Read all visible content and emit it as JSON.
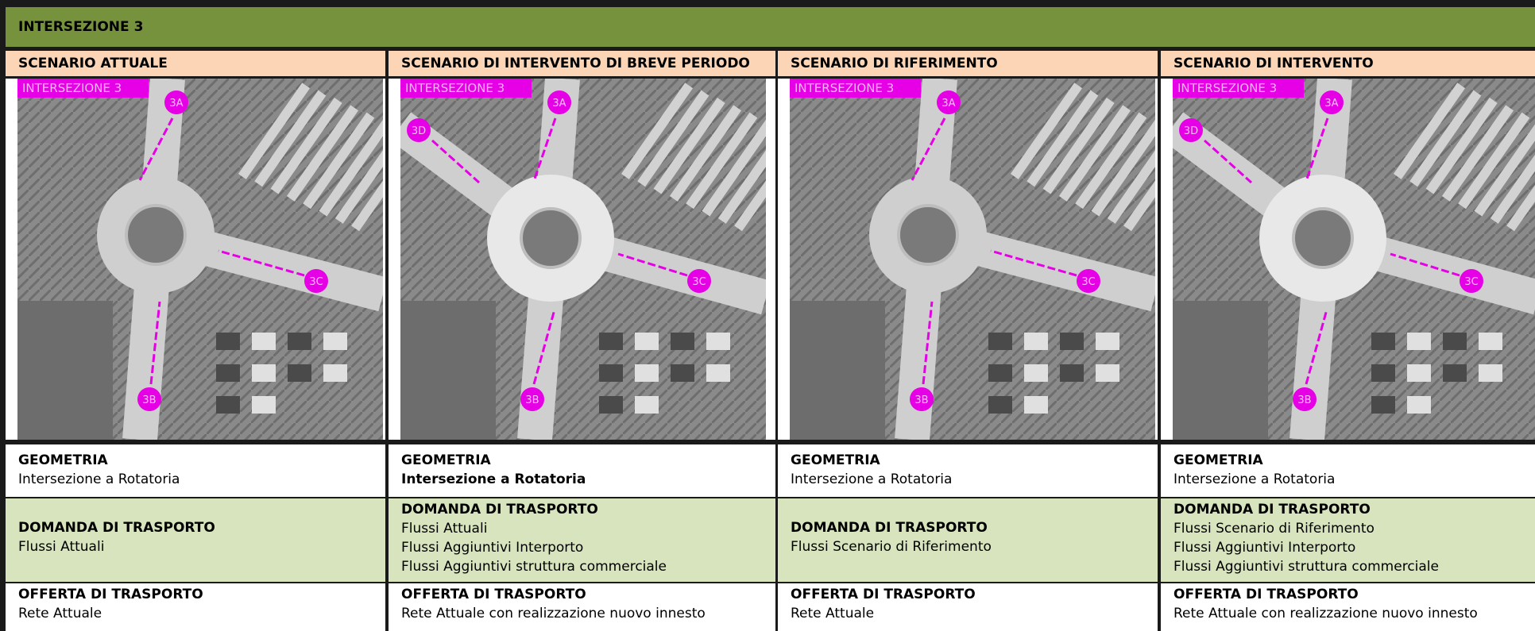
{
  "title": "INTERSEZIONE 3",
  "columns": [
    {
      "header": "SCENARIO ATTUALE",
      "map": {
        "badge": "INTERSEZIONE 3",
        "points": [
          "3A",
          "3B",
          "3C"
        ]
      },
      "geometry": {
        "label": "GEOMETRIA",
        "value": "Intersezione a Rotatoria"
      },
      "demand": {
        "label": "DOMANDA DI TRASPORTO",
        "lines": [
          "Flussi Attuali"
        ]
      },
      "supply": {
        "label": "OFFERTA DI TRASPORTO",
        "value": "Rete Attuale"
      }
    },
    {
      "header": "SCENARIO DI INTERVENTO DI BREVE PERIODO",
      "map": {
        "badge": "INTERSEZIONE 3",
        "points": [
          "3A",
          "3B",
          "3C",
          "3D"
        ]
      },
      "geometry": {
        "label": "GEOMETRIA",
        "value": "Intersezione a Rotatoria"
      },
      "demand": {
        "label": "DOMANDA DI TRASPORTO",
        "lines": [
          "Flussi Attuali",
          "Flussi Aggiuntivi Interporto",
          "Flussi Aggiuntivi struttura commerciale"
        ]
      },
      "supply": {
        "label": "OFFERTA DI TRASPORTO",
        "value": "Rete Attuale con realizzazione nuovo innesto"
      }
    },
    {
      "header": "SCENARIO DI RIFERIMENTO",
      "map": {
        "badge": "INTERSEZIONE 3",
        "points": [
          "3A",
          "3B",
          "3C"
        ]
      },
      "geometry": {
        "label": "GEOMETRIA",
        "value": "Intersezione a Rotatoria"
      },
      "demand": {
        "label": "DOMANDA DI TRASPORTO",
        "lines": [
          "Flussi Scenario di Riferimento"
        ]
      },
      "supply": {
        "label": "OFFERTA DI TRASPORTO",
        "value": "Rete Attuale"
      }
    },
    {
      "header": "SCENARIO DI INTERVENTO",
      "map": {
        "badge": "INTERSEZIONE 3",
        "points": [
          "3A",
          "3B",
          "3C",
          "3D"
        ]
      },
      "geometry": {
        "label": "GEOMETRIA",
        "value": "Intersezione a Rotatoria"
      },
      "demand": {
        "label": "DOMANDA DI TRASPORTO",
        "lines": [
          "Flussi Scenario di Riferimento",
          "Flussi Aggiuntivi Interporto",
          "Flussi Aggiuntivi struttura commerciale"
        ]
      },
      "supply": {
        "label": "OFFERTA DI TRASPORTO",
        "value": "Rete Attuale con realizzazione nuovo innesto"
      }
    }
  ]
}
